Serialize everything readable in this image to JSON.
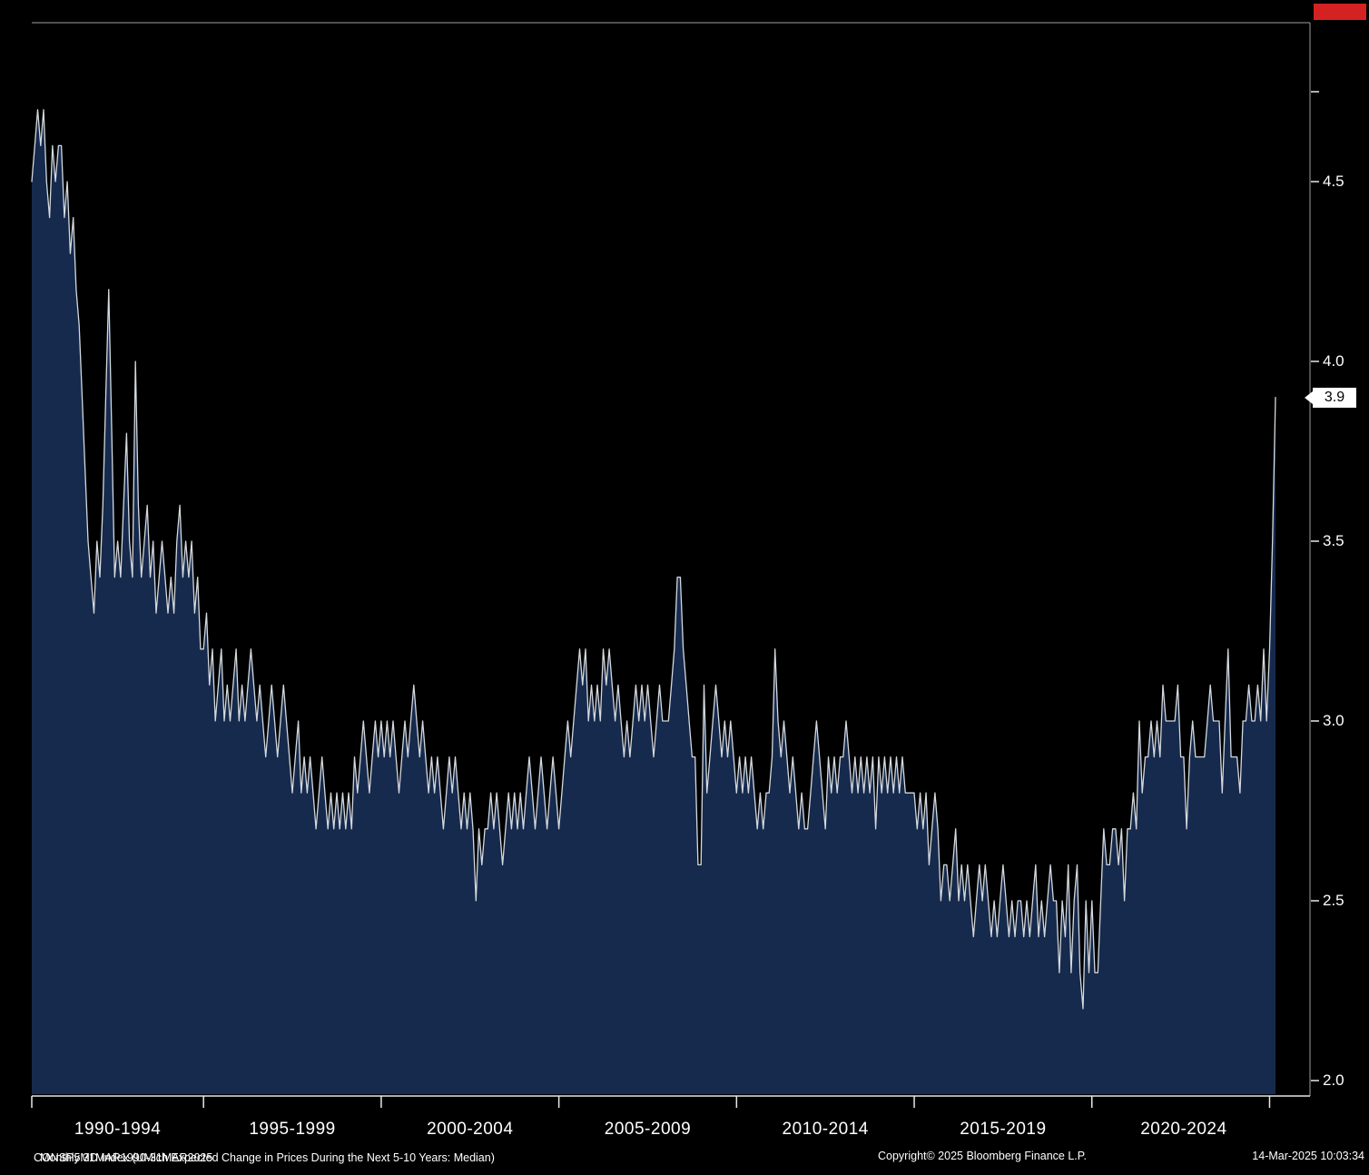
{
  "chart_data": {
    "type": "area",
    "title": "UMich Expected Change in Prices During the Next 5-10 Years: Median",
    "series_name": "CONSP5MD Index",
    "frequency": "Monthly",
    "x_start": "31MAR1990",
    "x_end": "31MAR2025",
    "ylim": [
      2.0,
      4.94
    ],
    "ytick_values": [
      2.0,
      2.5,
      3.0,
      3.5,
      4.0,
      4.5
    ],
    "ytick_labels": [
      "2.0",
      "2.5",
      "3.0",
      "3.5",
      "4.0",
      "4.5"
    ],
    "x_period_labels": [
      "1990-1994",
      "1995-1999",
      "2000-2004",
      "2005-2009",
      "2010-2014",
      "2015-2019",
      "2020-2024"
    ],
    "last_value": 3.9,
    "last_value_label": "3.9",
    "grid": "off",
    "legend": "none",
    "colors": {
      "line": "#d4d9de",
      "area": "#162a4d",
      "background": "#000000",
      "axis_text": "#ffffff",
      "frame": "#9aa0a6",
      "axis_line": "#e8e8e8",
      "last_value_bg": "#ffffff",
      "last_value_text": "#000000",
      "close_button": "#d42222"
    },
    "values": [
      4.5,
      4.6,
      4.7,
      4.6,
      4.7,
      4.5,
      4.4,
      4.6,
      4.5,
      4.6,
      4.6,
      4.4,
      4.5,
      4.3,
      4.4,
      4.2,
      4.1,
      3.9,
      3.7,
      3.5,
      3.4,
      3.3,
      3.5,
      3.4,
      3.6,
      3.9,
      4.2,
      3.8,
      3.4,
      3.5,
      3.4,
      3.6,
      3.8,
      3.5,
      3.4,
      4.0,
      3.6,
      3.4,
      3.5,
      3.6,
      3.4,
      3.5,
      3.3,
      3.4,
      3.5,
      3.4,
      3.3,
      3.4,
      3.3,
      3.5,
      3.6,
      3.4,
      3.5,
      3.4,
      3.5,
      3.3,
      3.4,
      3.2,
      3.2,
      3.3,
      3.1,
      3.2,
      3.0,
      3.1,
      3.2,
      3.0,
      3.1,
      3.0,
      3.1,
      3.2,
      3.0,
      3.1,
      3.0,
      3.1,
      3.2,
      3.1,
      3.0,
      3.1,
      3.0,
      2.9,
      3.0,
      3.1,
      3.0,
      2.9,
      3.0,
      3.1,
      3.0,
      2.9,
      2.8,
      2.9,
      3.0,
      2.8,
      2.9,
      2.8,
      2.9,
      2.8,
      2.7,
      2.8,
      2.9,
      2.8,
      2.7,
      2.8,
      2.7,
      2.8,
      2.7,
      2.8,
      2.7,
      2.8,
      2.7,
      2.9,
      2.8,
      2.9,
      3.0,
      2.9,
      2.8,
      2.9,
      3.0,
      2.9,
      3.0,
      2.9,
      3.0,
      2.9,
      3.0,
      2.9,
      2.8,
      2.9,
      3.0,
      2.9,
      3.0,
      3.1,
      3.0,
      2.9,
      3.0,
      2.9,
      2.8,
      2.9,
      2.8,
      2.9,
      2.8,
      2.7,
      2.8,
      2.9,
      2.8,
      2.9,
      2.8,
      2.7,
      2.8,
      2.7,
      2.8,
      2.7,
      2.5,
      2.7,
      2.6,
      2.7,
      2.7,
      2.8,
      2.7,
      2.8,
      2.7,
      2.6,
      2.7,
      2.8,
      2.7,
      2.8,
      2.7,
      2.8,
      2.7,
      2.8,
      2.9,
      2.8,
      2.7,
      2.8,
      2.9,
      2.8,
      2.7,
      2.8,
      2.9,
      2.8,
      2.7,
      2.8,
      2.9,
      3.0,
      2.9,
      3.0,
      3.1,
      3.2,
      3.1,
      3.2,
      3.0,
      3.1,
      3.0,
      3.1,
      3.0,
      3.2,
      3.1,
      3.2,
      3.1,
      3.0,
      3.1,
      3.0,
      2.9,
      3.0,
      2.9,
      3.0,
      3.1,
      3.0,
      3.1,
      3.0,
      3.1,
      3.0,
      2.9,
      3.0,
      3.1,
      3.0,
      3.0,
      3.0,
      3.1,
      3.2,
      3.4,
      3.4,
      3.2,
      3.1,
      3.0,
      2.9,
      2.9,
      2.6,
      2.6,
      3.1,
      2.8,
      2.9,
      3.0,
      3.1,
      3.0,
      2.9,
      3.0,
      2.9,
      3.0,
      2.9,
      2.8,
      2.9,
      2.8,
      2.9,
      2.8,
      2.9,
      2.8,
      2.7,
      2.8,
      2.7,
      2.8,
      2.8,
      2.9,
      3.2,
      3.0,
      2.9,
      3.0,
      2.9,
      2.8,
      2.9,
      2.8,
      2.7,
      2.8,
      2.7,
      2.7,
      2.8,
      2.9,
      3.0,
      2.9,
      2.8,
      2.7,
      2.9,
      2.8,
      2.9,
      2.8,
      2.9,
      2.9,
      3.0,
      2.9,
      2.8,
      2.9,
      2.8,
      2.9,
      2.8,
      2.9,
      2.8,
      2.9,
      2.7,
      2.9,
      2.8,
      2.9,
      2.8,
      2.9,
      2.8,
      2.9,
      2.8,
      2.9,
      2.8,
      2.8,
      2.8,
      2.8,
      2.7,
      2.8,
      2.7,
      2.8,
      2.6,
      2.7,
      2.8,
      2.7,
      2.5,
      2.6,
      2.6,
      2.5,
      2.6,
      2.7,
      2.5,
      2.6,
      2.5,
      2.6,
      2.5,
      2.4,
      2.5,
      2.6,
      2.5,
      2.6,
      2.5,
      2.4,
      2.5,
      2.4,
      2.5,
      2.6,
      2.5,
      2.4,
      2.5,
      2.4,
      2.5,
      2.5,
      2.4,
      2.5,
      2.4,
      2.5,
      2.6,
      2.4,
      2.5,
      2.4,
      2.5,
      2.6,
      2.5,
      2.5,
      2.3,
      2.5,
      2.4,
      2.6,
      2.3,
      2.5,
      2.6,
      2.3,
      2.2,
      2.5,
      2.3,
      2.5,
      2.3,
      2.3,
      2.5,
      2.7,
      2.6,
      2.6,
      2.7,
      2.7,
      2.6,
      2.7,
      2.5,
      2.7,
      2.7,
      2.8,
      2.7,
      3.0,
      2.8,
      2.9,
      2.9,
      3.0,
      2.9,
      3.0,
      2.9,
      3.1,
      3.0,
      3.0,
      3.0,
      3.0,
      3.1,
      2.9,
      2.9,
      2.7,
      2.9,
      3.0,
      2.9,
      2.9,
      2.9,
      2.9,
      3.0,
      3.1,
      3.0,
      3.0,
      3.0,
      2.8,
      3.0,
      3.2,
      2.9,
      2.9,
      2.9,
      2.8,
      3.0,
      3.0,
      3.1,
      3.0,
      3.0,
      3.1,
      3.0,
      3.2,
      3.0,
      3.2,
      3.5,
      3.9
    ]
  },
  "footer": {
    "description": "CONSP5MD Index (UMich Expected Change in Prices During the Next 5-10 Years: Median)",
    "range": "Monthly 31MAR1990-31MAR2025",
    "copyright": "Copyright© 2025 Bloomberg Finance L.P.",
    "timestamp": "14-Mar-2025 10:03:34"
  }
}
